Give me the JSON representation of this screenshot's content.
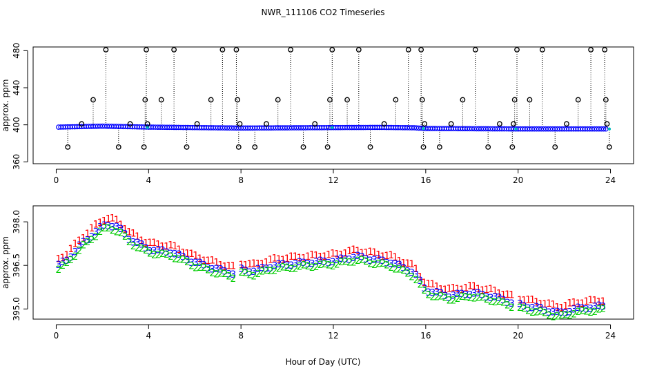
{
  "chart_data": {
    "title": "NWR_111106  CO2 Timeseries",
    "xlabel": "Hour of Day (UTC)",
    "panels": [
      {
        "id": "top",
        "type": "scatter",
        "ylabel": "approx. ppm",
        "xlim": [
          -1,
          25
        ],
        "ylim": [
          358,
          484
        ],
        "xticks": [
          0,
          4,
          8,
          12,
          16,
          20,
          24
        ],
        "yticks": [
          360,
          400,
          440,
          480
        ],
        "ytick_rotate": true,
        "series": [
          {
            "name": "flagged points",
            "color": "#000000",
            "marker": "circle-open",
            "dropline": true,
            "points": [
              [
                0.5,
                376
              ],
              [
                1.1,
                401
              ],
              [
                1.6,
                427
              ],
              [
                2.15,
                481
              ],
              [
                2.7,
                376
              ],
              [
                3.2,
                401
              ],
              [
                3.8,
                376
              ],
              [
                3.85,
                427
              ],
              [
                3.9,
                481
              ],
              [
                3.95,
                401
              ],
              [
                4.55,
                427
              ],
              [
                5.1,
                481
              ],
              [
                5.65,
                376
              ],
              [
                6.1,
                401
              ],
              [
                6.7,
                427
              ],
              [
                7.2,
                481
              ],
              [
                7.8,
                481
              ],
              [
                7.85,
                427
              ],
              [
                7.9,
                376
              ],
              [
                7.95,
                401
              ],
              [
                8.6,
                376
              ],
              [
                9.1,
                401
              ],
              [
                9.6,
                427
              ],
              [
                10.15,
                481
              ],
              [
                10.7,
                376
              ],
              [
                11.2,
                401
              ],
              [
                11.75,
                376
              ],
              [
                11.85,
                427
              ],
              [
                11.95,
                481
              ],
              [
                12.6,
                427
              ],
              [
                13.1,
                481
              ],
              [
                13.6,
                376
              ],
              [
                14.2,
                401
              ],
              [
                14.7,
                427
              ],
              [
                15.25,
                481
              ],
              [
                15.8,
                481
              ],
              [
                15.85,
                427
              ],
              [
                15.9,
                376
              ],
              [
                15.95,
                401
              ],
              [
                16.6,
                376
              ],
              [
                17.1,
                401
              ],
              [
                17.6,
                427
              ],
              [
                18.15,
                481
              ],
              [
                18.7,
                376
              ],
              [
                19.2,
                401
              ],
              [
                19.75,
                376
              ],
              [
                19.8,
                401
              ],
              [
                19.85,
                427
              ],
              [
                19.95,
                481
              ],
              [
                20.5,
                427
              ],
              [
                21.05,
                481
              ],
              [
                21.6,
                376
              ],
              [
                22.1,
                401
              ],
              [
                22.6,
                427
              ],
              [
                23.15,
                481
              ],
              [
                23.75,
                481
              ],
              [
                23.8,
                427
              ],
              [
                23.85,
                401
              ],
              [
                23.95,
                376
              ]
            ]
          },
          {
            "name": "dense series",
            "color": "#0000ff",
            "marker": "circle-open",
            "profile": [
              [
                0.1,
                397.5
              ],
              [
                2.0,
                398.5
              ],
              [
                4.0,
                397.5
              ],
              [
                8.0,
                396.5
              ],
              [
                12.0,
                397.0
              ],
              [
                14.0,
                397.2
              ],
              [
                15.5,
                396.8
              ],
              [
                16.0,
                396.0
              ],
              [
                20.0,
                395.5
              ],
              [
                24.0,
                395.5
              ]
            ],
            "x_start": 0.1,
            "x_end": 23.95,
            "step": 0.1
          },
          {
            "name": "accent points",
            "color": "#00bbbb",
            "marker": "dot",
            "points": [
              [
                3.95,
                397
              ],
              [
                11.95,
                397
              ],
              [
                15.9,
                396
              ],
              [
                19.9,
                395.5
              ],
              [
                23.95,
                395.5
              ]
            ]
          }
        ]
      },
      {
        "id": "bottom",
        "type": "scatter-text",
        "ylabel": "approx. ppm",
        "xlim": [
          -1,
          25
        ],
        "ylim": [
          394.65,
          398.55
        ],
        "xticks": [
          0,
          4,
          8,
          12,
          16,
          20,
          24
        ],
        "yticks": [
          395.0,
          396.5,
          398.0
        ],
        "ytick_labels": [
          "395.0",
          "396.5",
          "398.0"
        ],
        "breaks": [
          [
            7.75,
            7.95
          ],
          [
            11.85,
            11.95
          ],
          [
            15.8,
            15.9
          ],
          [
            19.8,
            19.9
          ],
          [
            23.8,
            24.0
          ]
        ],
        "profile": [
          [
            0.1,
            396.5
          ],
          [
            0.5,
            396.7
          ],
          [
            1.0,
            397.15
          ],
          [
            1.5,
            397.5
          ],
          [
            2.0,
            397.85
          ],
          [
            2.3,
            397.9
          ],
          [
            2.7,
            397.8
          ],
          [
            3.2,
            397.4
          ],
          [
            4.0,
            397.05
          ],
          [
            5.0,
            396.95
          ],
          [
            6.0,
            396.6
          ],
          [
            7.0,
            396.35
          ],
          [
            7.8,
            396.2
          ],
          [
            8.0,
            396.35
          ],
          [
            8.5,
            396.3
          ],
          [
            9.5,
            396.5
          ],
          [
            11.0,
            396.6
          ],
          [
            12.0,
            396.65
          ],
          [
            13.0,
            396.8
          ],
          [
            14.5,
            396.6
          ],
          [
            15.5,
            396.25
          ],
          [
            16.0,
            395.65
          ],
          [
            17.0,
            395.45
          ],
          [
            18.0,
            395.55
          ],
          [
            19.0,
            395.4
          ],
          [
            19.8,
            395.2
          ],
          [
            20.0,
            395.15
          ],
          [
            21.0,
            395.0
          ],
          [
            21.8,
            394.85
          ],
          [
            22.5,
            395.0
          ],
          [
            23.8,
            395.1
          ]
        ],
        "series": [
          {
            "name": "1",
            "label": "1",
            "color": "#ff0000",
            "offset": 0.22
          },
          {
            "name": "3",
            "label": "3",
            "color": "#0000ff",
            "offset": 0.0
          },
          {
            "name": "2",
            "label": "2",
            "color": "#00cc00",
            "offset": -0.12
          }
        ],
        "step": 0.18
      }
    ]
  }
}
